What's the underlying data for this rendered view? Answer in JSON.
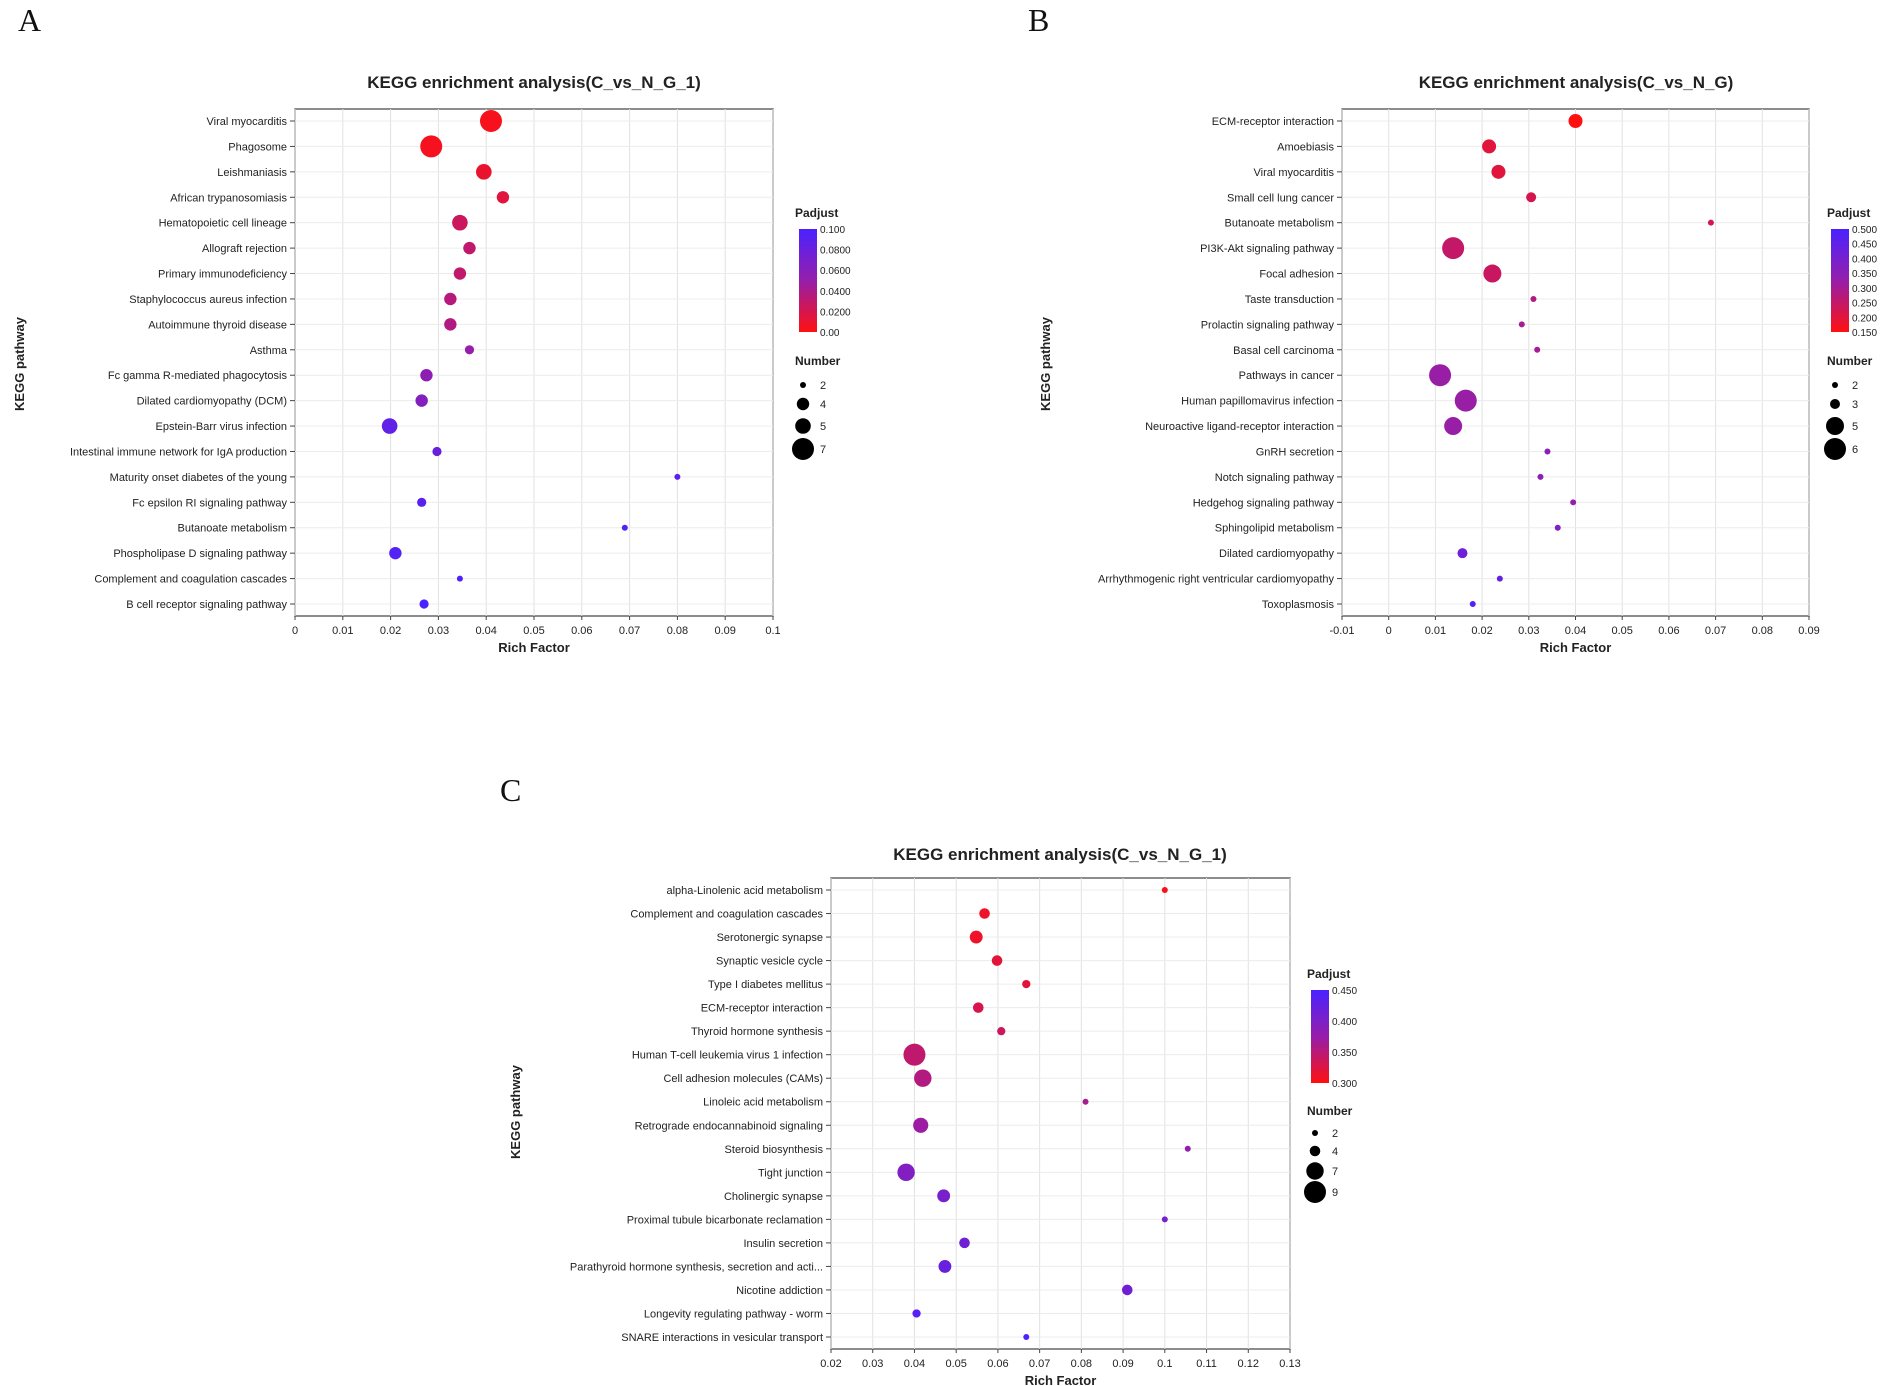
{
  "panel_labels": [
    "A",
    "B",
    "C"
  ],
  "chart_data": [
    {
      "type": "scatter",
      "title": "KEGG enrichment analysis(C_vs_N_G_1)",
      "xlabel": "Rich Factor",
      "ylabel": "KEGG pathway",
      "xlim": [
        0,
        0.1
      ],
      "xticks": [
        "0",
        "0.01",
        "0.02",
        "0.03",
        "0.04",
        "0.05",
        "0.06",
        "0.07",
        "0.08",
        "0.09",
        "0.1"
      ],
      "grid": true,
      "color_legend": {
        "title": "Padjust",
        "range": [
          0,
          0.1
        ],
        "ticks": [
          "0.100",
          "0.0800",
          "0.0600",
          "0.0400",
          "0.0200",
          "0.00"
        ],
        "low_color": "#ff1010",
        "high_color": "#4a22ff"
      },
      "size_legend": {
        "title": "Number",
        "values": [
          2,
          4,
          5,
          7
        ]
      },
      "points": [
        {
          "pathway": "Viral myocarditis",
          "rich_factor": 0.041,
          "number": 7,
          "padjust": 0.004
        },
        {
          "pathway": "Phagosome",
          "rich_factor": 0.0285,
          "number": 7,
          "padjust": 0.005
        },
        {
          "pathway": "Leishmaniasis",
          "rich_factor": 0.0395,
          "number": 5,
          "padjust": 0.01
        },
        {
          "pathway": "African trypanosomiasis",
          "rich_factor": 0.0435,
          "number": 4,
          "padjust": 0.015
        },
        {
          "pathway": "Hematopoietic cell lineage",
          "rich_factor": 0.0345,
          "number": 5,
          "padjust": 0.025
        },
        {
          "pathway": "Allograft rejection",
          "rich_factor": 0.0365,
          "number": 4,
          "padjust": 0.03
        },
        {
          "pathway": "Primary immunodeficiency",
          "rich_factor": 0.0345,
          "number": 4,
          "padjust": 0.03
        },
        {
          "pathway": "Staphylococcus aureus infection",
          "rich_factor": 0.0325,
          "number": 4,
          "padjust": 0.035
        },
        {
          "pathway": "Autoimmune thyroid disease",
          "rich_factor": 0.0325,
          "number": 4,
          "padjust": 0.037
        },
        {
          "pathway": "Asthma",
          "rich_factor": 0.0365,
          "number": 3,
          "padjust": 0.05
        },
        {
          "pathway": "Fc gamma R-mediated phagocytosis",
          "rich_factor": 0.0275,
          "number": 4,
          "padjust": 0.055
        },
        {
          "pathway": "Dilated cardiomyopathy (DCM)",
          "rich_factor": 0.0265,
          "number": 4,
          "padjust": 0.062
        },
        {
          "pathway": "Epstein-Barr virus infection",
          "rich_factor": 0.0198,
          "number": 5,
          "padjust": 0.085
        },
        {
          "pathway": "Intestinal immune network for IgA production",
          "rich_factor": 0.0297,
          "number": 3,
          "padjust": 0.08
        },
        {
          "pathway": "Maturity onset diabetes of the young",
          "rich_factor": 0.08,
          "number": 2,
          "padjust": 0.09
        },
        {
          "pathway": "Fc epsilon RI signaling pathway",
          "rich_factor": 0.0265,
          "number": 3,
          "padjust": 0.09
        },
        {
          "pathway": "Butanoate metabolism",
          "rich_factor": 0.069,
          "number": 2,
          "padjust": 0.095
        },
        {
          "pathway": "Phospholipase D signaling pathway",
          "rich_factor": 0.021,
          "number": 4,
          "padjust": 0.095
        },
        {
          "pathway": "Complement and coagulation cascades",
          "rich_factor": 0.0345,
          "number": 2,
          "padjust": 0.097
        },
        {
          "pathway": "B cell receptor signaling pathway",
          "rich_factor": 0.027,
          "number": 3,
          "padjust": 0.1
        }
      ]
    },
    {
      "type": "scatter",
      "title": "KEGG enrichment analysis(C_vs_N_G)",
      "xlabel": "Rich Factor",
      "ylabel": "KEGG pathway",
      "xlim": [
        -0.01,
        0.09
      ],
      "xticks": [
        "-0.01",
        "0",
        "0.01",
        "0.02",
        "0.03",
        "0.04",
        "0.05",
        "0.06",
        "0.07",
        "0.08",
        "0.09"
      ],
      "grid": true,
      "color_legend": {
        "title": "Padjust",
        "range": [
          0.15,
          0.5
        ],
        "ticks": [
          "0.500",
          "0.450",
          "0.400",
          "0.350",
          "0.300",
          "0.250",
          "0.200",
          "0.150"
        ],
        "low_color": "#ff1010",
        "high_color": "#4a22ff"
      },
      "size_legend": {
        "title": "Number",
        "values": [
          2,
          3,
          5,
          6
        ]
      },
      "points": [
        {
          "pathway": "ECM-receptor interaction",
          "rich_factor": 0.04,
          "number": 4,
          "padjust": 0.15
        },
        {
          "pathway": "Amoebiasis",
          "rich_factor": 0.0215,
          "number": 4,
          "padjust": 0.2
        },
        {
          "pathway": "Viral myocarditis",
          "rich_factor": 0.0235,
          "number": 4,
          "padjust": 0.2
        },
        {
          "pathway": "Small cell lung cancer",
          "rich_factor": 0.0305,
          "number": 3,
          "padjust": 0.22
        },
        {
          "pathway": "Butanoate metabolism",
          "rich_factor": 0.069,
          "number": 2,
          "padjust": 0.22
        },
        {
          "pathway": "PI3K-Akt signaling pathway",
          "rich_factor": 0.0138,
          "number": 6,
          "padjust": 0.25
        },
        {
          "pathway": "Focal adhesion",
          "rich_factor": 0.0222,
          "number": 5,
          "padjust": 0.24
        },
        {
          "pathway": "Taste transduction",
          "rich_factor": 0.031,
          "number": 2,
          "padjust": 0.28
        },
        {
          "pathway": "Prolactin signaling pathway",
          "rich_factor": 0.0285,
          "number": 2,
          "padjust": 0.3
        },
        {
          "pathway": "Basal cell carcinoma",
          "rich_factor": 0.0318,
          "number": 2,
          "padjust": 0.3
        },
        {
          "pathway": "Pathways in cancer",
          "rich_factor": 0.011,
          "number": 6,
          "padjust": 0.32
        },
        {
          "pathway": "Human papillomavirus infection",
          "rich_factor": 0.0165,
          "number": 6,
          "padjust": 0.32
        },
        {
          "pathway": "Neuroactive ligand-receptor interaction",
          "rich_factor": 0.0138,
          "number": 5,
          "padjust": 0.32
        },
        {
          "pathway": "GnRH secretion",
          "rich_factor": 0.034,
          "number": 2,
          "padjust": 0.35
        },
        {
          "pathway": "Notch signaling pathway",
          "rich_factor": 0.0325,
          "number": 2,
          "padjust": 0.35
        },
        {
          "pathway": "Hedgehog signaling pathway",
          "rich_factor": 0.0395,
          "number": 2,
          "padjust": 0.33
        },
        {
          "pathway": "Sphingolipid metabolism",
          "rich_factor": 0.0362,
          "number": 2,
          "padjust": 0.37
        },
        {
          "pathway": "Dilated cardiomyopathy",
          "rich_factor": 0.0158,
          "number": 3,
          "padjust": 0.42
        },
        {
          "pathway": "Arrhythmogenic right ventricular cardiomyopathy",
          "rich_factor": 0.0238,
          "number": 2,
          "padjust": 0.44
        },
        {
          "pathway": "Toxoplasmosis",
          "rich_factor": 0.018,
          "number": 2,
          "padjust": 0.48
        }
      ]
    },
    {
      "type": "scatter",
      "title": "KEGG enrichment analysis(C_vs_N_G_1)",
      "xlabel": "Rich Factor",
      "ylabel": "KEGG pathway",
      "xlim": [
        0.02,
        0.13
      ],
      "xticks": [
        "0.02",
        "0.03",
        "0.04",
        "0.05",
        "0.06",
        "0.07",
        "0.08",
        "0.09",
        "0.1",
        "0.11",
        "0.12",
        "0.13"
      ],
      "grid": true,
      "color_legend": {
        "title": "Padjust",
        "range": [
          0.285,
          0.465
        ],
        "ticks": [
          "0.450",
          "0.400",
          "0.350",
          "0.300"
        ],
        "low_color": "#ff1010",
        "high_color": "#4a22ff"
      },
      "size_legend": {
        "title": "Number",
        "values": [
          2,
          4,
          7,
          9
        ]
      },
      "points": [
        {
          "pathway": "alpha-Linolenic acid metabolism",
          "rich_factor": 0.1,
          "number": 2,
          "padjust": 0.29
        },
        {
          "pathway": "Complement and coagulation cascades",
          "rich_factor": 0.0568,
          "number": 4,
          "padjust": 0.3
        },
        {
          "pathway": "Serotonergic synapse",
          "rich_factor": 0.0548,
          "number": 5,
          "padjust": 0.3
        },
        {
          "pathway": "Synaptic vesicle cycle",
          "rich_factor": 0.0598,
          "number": 4,
          "padjust": 0.31
        },
        {
          "pathway": "Type I diabetes mellitus",
          "rich_factor": 0.0668,
          "number": 3,
          "padjust": 0.31
        },
        {
          "pathway": "ECM-receptor interaction",
          "rich_factor": 0.0553,
          "number": 4,
          "padjust": 0.32
        },
        {
          "pathway": "Thyroid hormone synthesis",
          "rich_factor": 0.0608,
          "number": 3,
          "padjust": 0.33
        },
        {
          "pathway": "Human T-cell leukemia virus 1 infection",
          "rich_factor": 0.04,
          "number": 9,
          "padjust": 0.34
        },
        {
          "pathway": "Cell adhesion molecules (CAMs)",
          "rich_factor": 0.042,
          "number": 7,
          "padjust": 0.35
        },
        {
          "pathway": "Linoleic acid metabolism",
          "rich_factor": 0.081,
          "number": 2,
          "padjust": 0.36
        },
        {
          "pathway": "Retrograde endocannabinoid signaling",
          "rich_factor": 0.0415,
          "number": 6,
          "padjust": 0.37
        },
        {
          "pathway": "Steroid biosynthesis",
          "rich_factor": 0.1055,
          "number": 2,
          "padjust": 0.38
        },
        {
          "pathway": "Tight junction",
          "rich_factor": 0.038,
          "number": 7,
          "padjust": 0.4
        },
        {
          "pathway": "Cholinergic synapse",
          "rich_factor": 0.047,
          "number": 5,
          "padjust": 0.41
        },
        {
          "pathway": "Proximal tubule bicarbonate reclamation",
          "rich_factor": 0.1,
          "number": 2,
          "padjust": 0.41
        },
        {
          "pathway": "Insulin secretion",
          "rich_factor": 0.052,
          "number": 4,
          "padjust": 0.42
        },
        {
          "pathway": "Parathyroid hormone synthesis, secretion and acti...",
          "rich_factor": 0.0473,
          "number": 5,
          "padjust": 0.43
        },
        {
          "pathway": "Nicotine addiction",
          "rich_factor": 0.091,
          "number": 4,
          "padjust": 0.42
        },
        {
          "pathway": "Longevity regulating pathway - worm",
          "rich_factor": 0.0405,
          "number": 3,
          "padjust": 0.45
        },
        {
          "pathway": "SNARE interactions in vesicular transport",
          "rich_factor": 0.0668,
          "number": 2,
          "padjust": 0.46
        }
      ]
    }
  ]
}
